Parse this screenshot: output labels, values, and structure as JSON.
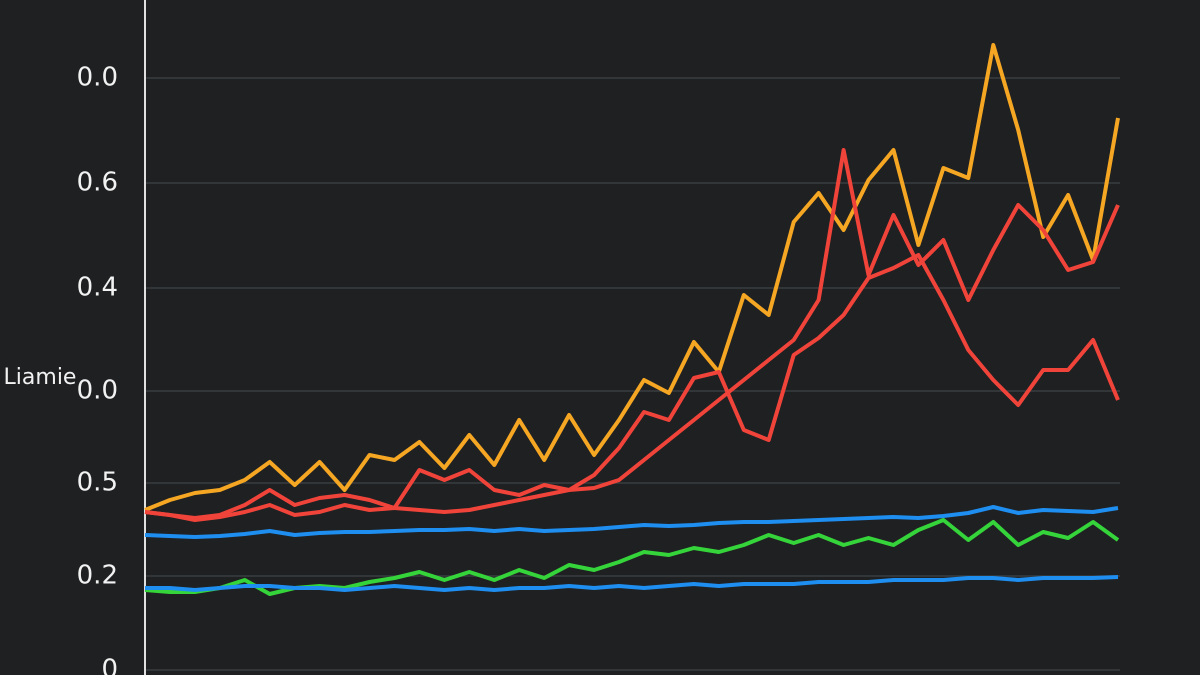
{
  "chart_data": {
    "type": "line",
    "ylabel": "Liamie",
    "ylim": [
      0,
      670
    ],
    "yticks": [
      0,
      {
        "value": 94,
        "label": "0.2"
      },
      {
        "value": 187,
        "label": "0.5"
      },
      {
        "value": 279,
        "label": "0.0"
      },
      {
        "value": 382,
        "label": "0.4"
      },
      {
        "value": 487,
        "label": "0.6"
      },
      {
        "value": 592,
        "label": "0.0"
      }
    ],
    "grid": true,
    "series": [
      {
        "color": "#f5a623",
        "values": [
          160,
          170,
          177,
          180,
          190,
          208,
          185,
          208,
          180,
          215,
          210,
          228,
          202,
          235,
          205,
          250,
          210,
          255,
          215,
          250,
          290,
          277,
          328,
          298,
          375,
          355,
          448,
          477,
          440,
          490,
          520,
          425,
          502,
          492,
          625,
          540,
          433,
          475,
          410,
          552
        ]
      },
      {
        "color": "#f0443a",
        "values": [
          158,
          155,
          152,
          155,
          165,
          180,
          165,
          172,
          175,
          170,
          162,
          160,
          158,
          160,
          165,
          170,
          175,
          180,
          182,
          190,
          210,
          230,
          250,
          270,
          290,
          310,
          330,
          370,
          520,
          395,
          455,
          405,
          430,
          370,
          420,
          465,
          440,
          400,
          408,
          465
        ]
      },
      {
        "color": "#f0443a",
        "values": [
          158,
          155,
          150,
          153,
          158,
          165,
          155,
          158,
          165,
          160,
          162,
          200,
          190,
          200,
          180,
          175,
          185,
          180,
          195,
          222,
          258,
          250,
          292,
          298,
          240,
          230,
          315,
          332,
          355,
          392,
          402,
          415,
          370,
          320,
          290,
          265,
          300,
          300,
          330,
          270
        ]
      },
      {
        "color": "#1e8ef0",
        "values": [
          135,
          134,
          133,
          134,
          136,
          139,
          135,
          137,
          138,
          138,
          139,
          140,
          140,
          141,
          139,
          141,
          139,
          140,
          141,
          143,
          145,
          144,
          145,
          147,
          148,
          148,
          149,
          150,
          151,
          152,
          153,
          152,
          154,
          157,
          163,
          157,
          160,
          159,
          158,
          162
        ]
      },
      {
        "color": "#35d43a",
        "values": [
          80,
          78,
          78,
          82,
          90,
          76,
          82,
          84,
          82,
          88,
          92,
          98,
          90,
          98,
          90,
          100,
          92,
          105,
          100,
          108,
          118,
          115,
          122,
          118,
          125,
          135,
          127,
          135,
          125,
          132,
          125,
          140,
          150,
          130,
          148,
          125,
          138,
          132,
          148,
          130
        ]
      },
      {
        "color": "#1e8ef0",
        "values": [
          82,
          82,
          80,
          82,
          84,
          84,
          82,
          82,
          80,
          82,
          84,
          82,
          80,
          82,
          80,
          82,
          82,
          84,
          82,
          84,
          82,
          84,
          86,
          84,
          86,
          86,
          86,
          88,
          88,
          88,
          90,
          90,
          90,
          92,
          92,
          90,
          92,
          92,
          92,
          93
        ]
      }
    ]
  }
}
